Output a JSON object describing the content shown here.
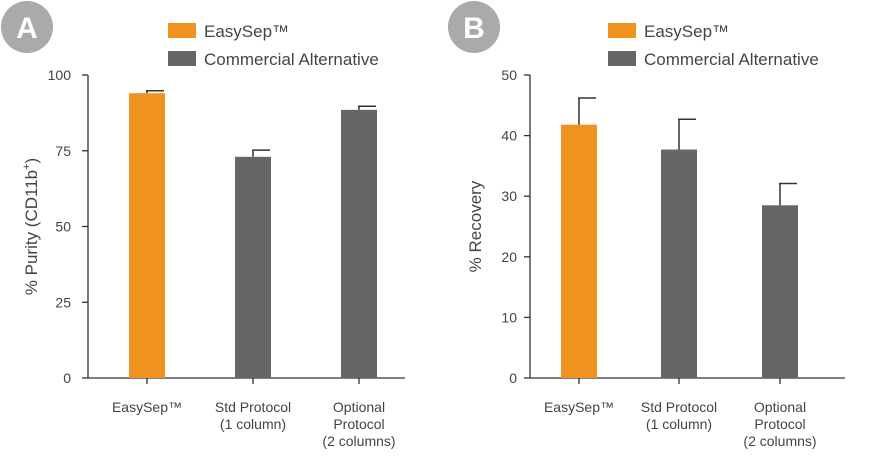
{
  "chart_data": [
    {
      "panel_label": "A",
      "type": "bar",
      "categories": [
        [
          "EasySep™"
        ],
        [
          "Std Protocol",
          "(1 column)"
        ],
        [
          "Optional",
          "Protocol",
          "(2 columns)"
        ]
      ],
      "values": [
        94,
        73,
        88.5
      ],
      "errors": [
        0.8,
        2.2,
        1.2
      ],
      "bar_series": [
        0,
        1,
        1
      ],
      "ylabel": "% Purity (CD11b",
      "ylabel_sup": "+",
      "ylabel_suffix": ")",
      "ylim": [
        0,
        100
      ],
      "yticks": [
        "0",
        "25",
        "50",
        "75",
        "100"
      ],
      "grid": false,
      "legend_position": "top",
      "legend": [
        "EasySep™",
        "Commercial Alternative"
      ]
    },
    {
      "panel_label": "B",
      "type": "bar",
      "categories": [
        [
          "EasySep™"
        ],
        [
          "Std Protocol",
          "(1 column)"
        ],
        [
          "Optional",
          "Protocol",
          "(2 columns)"
        ]
      ],
      "values": [
        41.8,
        37.7,
        28.5
      ],
      "errors": [
        4.4,
        5.0,
        3.6
      ],
      "bar_series": [
        0,
        1,
        1
      ],
      "ylabel": "% Recovery",
      "ylabel_sup": "",
      "ylabel_suffix": "",
      "ylim": [
        0,
        50
      ],
      "yticks": [
        "0",
        "10",
        "20",
        "30",
        "40",
        "50"
      ],
      "grid": false,
      "legend_position": "top",
      "legend": [
        "EasySep™",
        "Commercial Alternative"
      ]
    }
  ],
  "colors": {
    "easysep": "#f0921f",
    "alternative": "#666666",
    "badge": "#aaaaaa",
    "axis": "#333333",
    "text": "#444444"
  }
}
